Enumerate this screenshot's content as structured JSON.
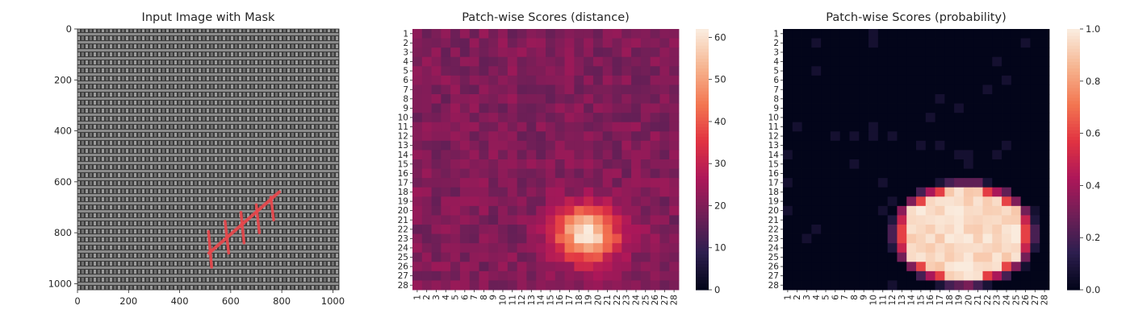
{
  "chart_data": [
    {
      "type": "image",
      "title": "Input Image with Mask",
      "xlim": [
        0,
        1024
      ],
      "ylim": [
        1024,
        0
      ],
      "xticks": [
        0,
        200,
        400,
        600,
        800,
        1000
      ],
      "yticks": [
        0,
        200,
        400,
        600,
        800,
        1000
      ],
      "mask_color": "#e8474c",
      "mask_stroke": {
        "spine": [
          [
            515,
            880
          ],
          [
            790,
            640
          ]
        ],
        "cross_stitches": [
          [
            [
              513,
              795
            ],
            [
              525,
              935
            ]
          ],
          [
            [
              578,
              755
            ],
            [
              592,
              880
            ]
          ],
          [
            [
              640,
              720
            ],
            [
              652,
              840
            ]
          ],
          [
            [
              700,
              690
            ],
            [
              712,
              800
            ]
          ],
          [
            [
              757,
              660
            ],
            [
              768,
              750
            ]
          ]
        ]
      }
    },
    {
      "type": "heatmap",
      "title": "Patch-wise Scores (distance)",
      "grid_size": 28,
      "xticks": [
        "1",
        "2",
        "3",
        "4",
        "5",
        "6",
        "7",
        "8",
        "9",
        "10",
        "11",
        "12",
        "13",
        "14",
        "15",
        "16",
        "17",
        "18",
        "19",
        "20",
        "21",
        "22",
        "23",
        "24",
        "25",
        "26",
        "27",
        "28"
      ],
      "yticks": [
        "1",
        "2",
        "3",
        "4",
        "5",
        "6",
        "7",
        "8",
        "9",
        "10",
        "11",
        "12",
        "13",
        "14",
        "15",
        "16",
        "17",
        "18",
        "19",
        "20",
        "21",
        "22",
        "23",
        "24",
        "25",
        "26",
        "27",
        "28"
      ],
      "colorbar": {
        "min": 0,
        "max": 62,
        "ticks": [
          0,
          10,
          20,
          30,
          40,
          50,
          60
        ]
      },
      "background_range": [
        16,
        24
      ],
      "hotspot": {
        "center_row": 22.5,
        "center_col": 18.8,
        "peak": 62,
        "radius_rows": 2.8,
        "radius_cols": 3.2
      },
      "colors": [
        "#03051a",
        "#2e1f4f",
        "#701f57",
        "#ad1759",
        "#e13342",
        "#f37651",
        "#f6b48f",
        "#faebdd"
      ]
    },
    {
      "type": "heatmap",
      "title": "Patch-wise Scores (probability)",
      "grid_size": 28,
      "xticks": [
        "1",
        "2",
        "3",
        "4",
        "5",
        "6",
        "7",
        "8",
        "9",
        "10",
        "11",
        "12",
        "13",
        "14",
        "15",
        "16",
        "17",
        "18",
        "19",
        "20",
        "21",
        "22",
        "23",
        "24",
        "25",
        "26",
        "27",
        "28"
      ],
      "yticks": [
        "1",
        "2",
        "3",
        "4",
        "5",
        "6",
        "7",
        "8",
        "9",
        "10",
        "11",
        "12",
        "13",
        "14",
        "15",
        "16",
        "17",
        "18",
        "19",
        "20",
        "21",
        "22",
        "23",
        "24",
        "25",
        "26",
        "27",
        "28"
      ],
      "colorbar": {
        "min": 0.0,
        "max": 1.0,
        "ticks": [
          "0.0",
          "0.2",
          "0.4",
          "0.6",
          "0.8",
          "1.0"
        ]
      },
      "hotspot": {
        "center_row": 22.5,
        "center_col": 19.5,
        "peak": 1.0,
        "radius_rows": 5.2,
        "radius_cols": 7.0
      },
      "colors": [
        "#03051a",
        "#2e1f4f",
        "#701f57",
        "#ad1759",
        "#e13342",
        "#f37651",
        "#f6b48f",
        "#faebdd"
      ]
    }
  ]
}
